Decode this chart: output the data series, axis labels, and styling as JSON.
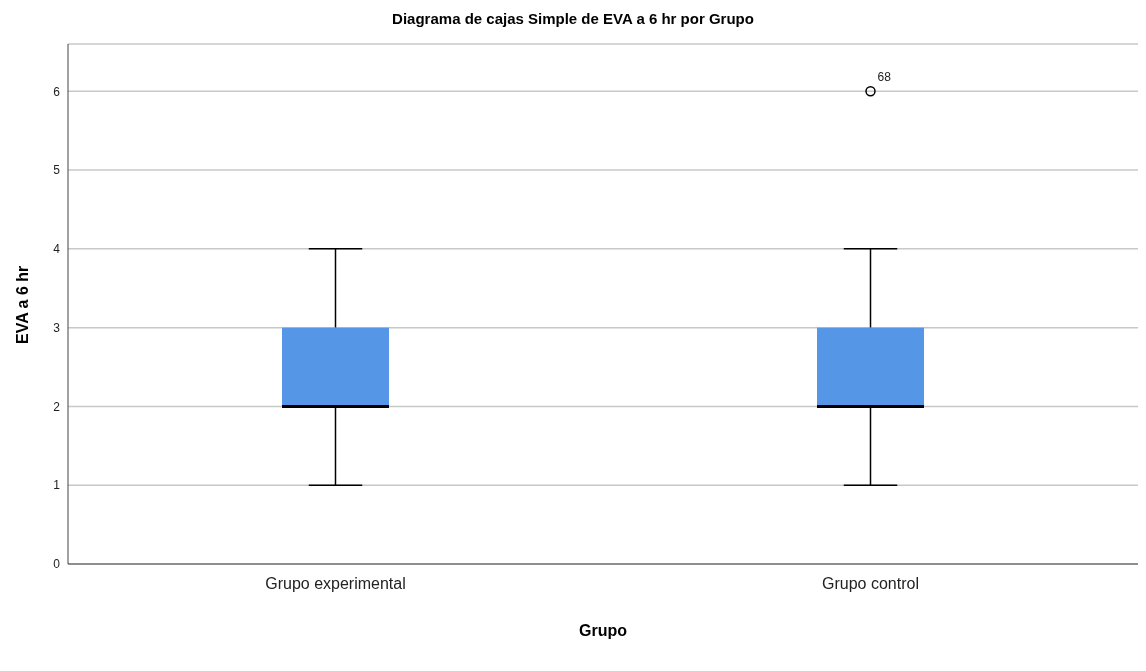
{
  "chart_data": {
    "type": "box",
    "title": "Diagrama de cajas Simple de EVA a 6 hr por Grupo",
    "xlabel": "Grupo",
    "ylabel": "EVA a 6 hr",
    "categories": [
      "Grupo experimental",
      "Grupo control"
    ],
    "boxes": [
      {
        "low": 1,
        "q1": 2,
        "median": 2,
        "q3": 3,
        "high": 4
      },
      {
        "low": 1,
        "q1": 2,
        "median": 2,
        "q3": 3,
        "high": 4,
        "outliers": [
          6
        ]
      }
    ],
    "color": "#5596e6",
    "ylim": [
      0,
      6.6
    ],
    "yticks": [
      0,
      1,
      2,
      3,
      4,
      5,
      6
    ],
    "grid": "y",
    "legend": false,
    "annotations": [
      "68"
    ]
  }
}
